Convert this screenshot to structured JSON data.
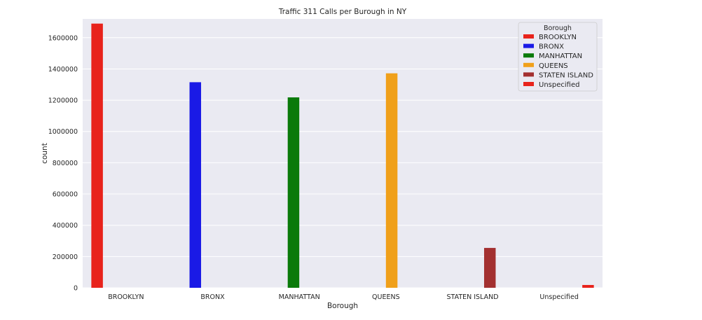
{
  "chart_data": {
    "type": "bar",
    "title": "Traffic 311 Calls per Burough in NY",
    "xlabel": "Borough",
    "ylabel": "count",
    "categories": [
      "BROOKLYN",
      "BRONX",
      "MANHATTAN",
      "QUEENS",
      "STATEN ISLAND",
      "Unspecified"
    ],
    "values": [
      1690000,
      1315000,
      1218000,
      1372000,
      255000,
      18000
    ],
    "colors": [
      "#e8231c",
      "#1a1ae6",
      "#0a7a0a",
      "#f0a01a",
      "#a33030",
      "#e8231c"
    ],
    "ylim": [
      0,
      1720000
    ],
    "yticks": [
      0,
      200000,
      400000,
      600000,
      800000,
      1000000,
      1200000,
      1400000,
      1600000
    ],
    "grid": true,
    "background": "#eaeaf2",
    "legend": {
      "title": "Borough",
      "placement": "top-right",
      "entries": [
        "BROOKLYN",
        "BRONX",
        "MANHATTAN",
        "QUEENS",
        "STATEN ISLAND",
        "Unspecified"
      ]
    }
  }
}
